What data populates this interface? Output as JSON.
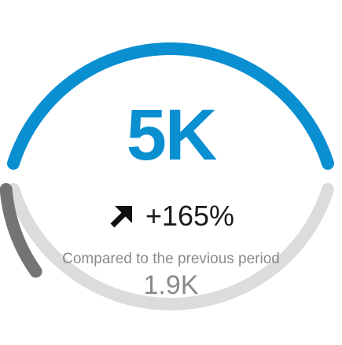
{
  "kpi": {
    "value": "5K",
    "change": "+165%",
    "trend_direction": "up",
    "trend_icon": "arrow-up-right-icon",
    "comparison_label": "Compared to the previous period",
    "previous_value": "1.9K",
    "previous_fraction_of_lower_gauge": 0.38
  },
  "colors": {
    "accent": "#0a8fd1",
    "gauge_previous": "#747474",
    "gauge_track": "#dcdcdc",
    "change_text": "#1a1a1a",
    "muted_text": "#8a8a8a"
  }
}
